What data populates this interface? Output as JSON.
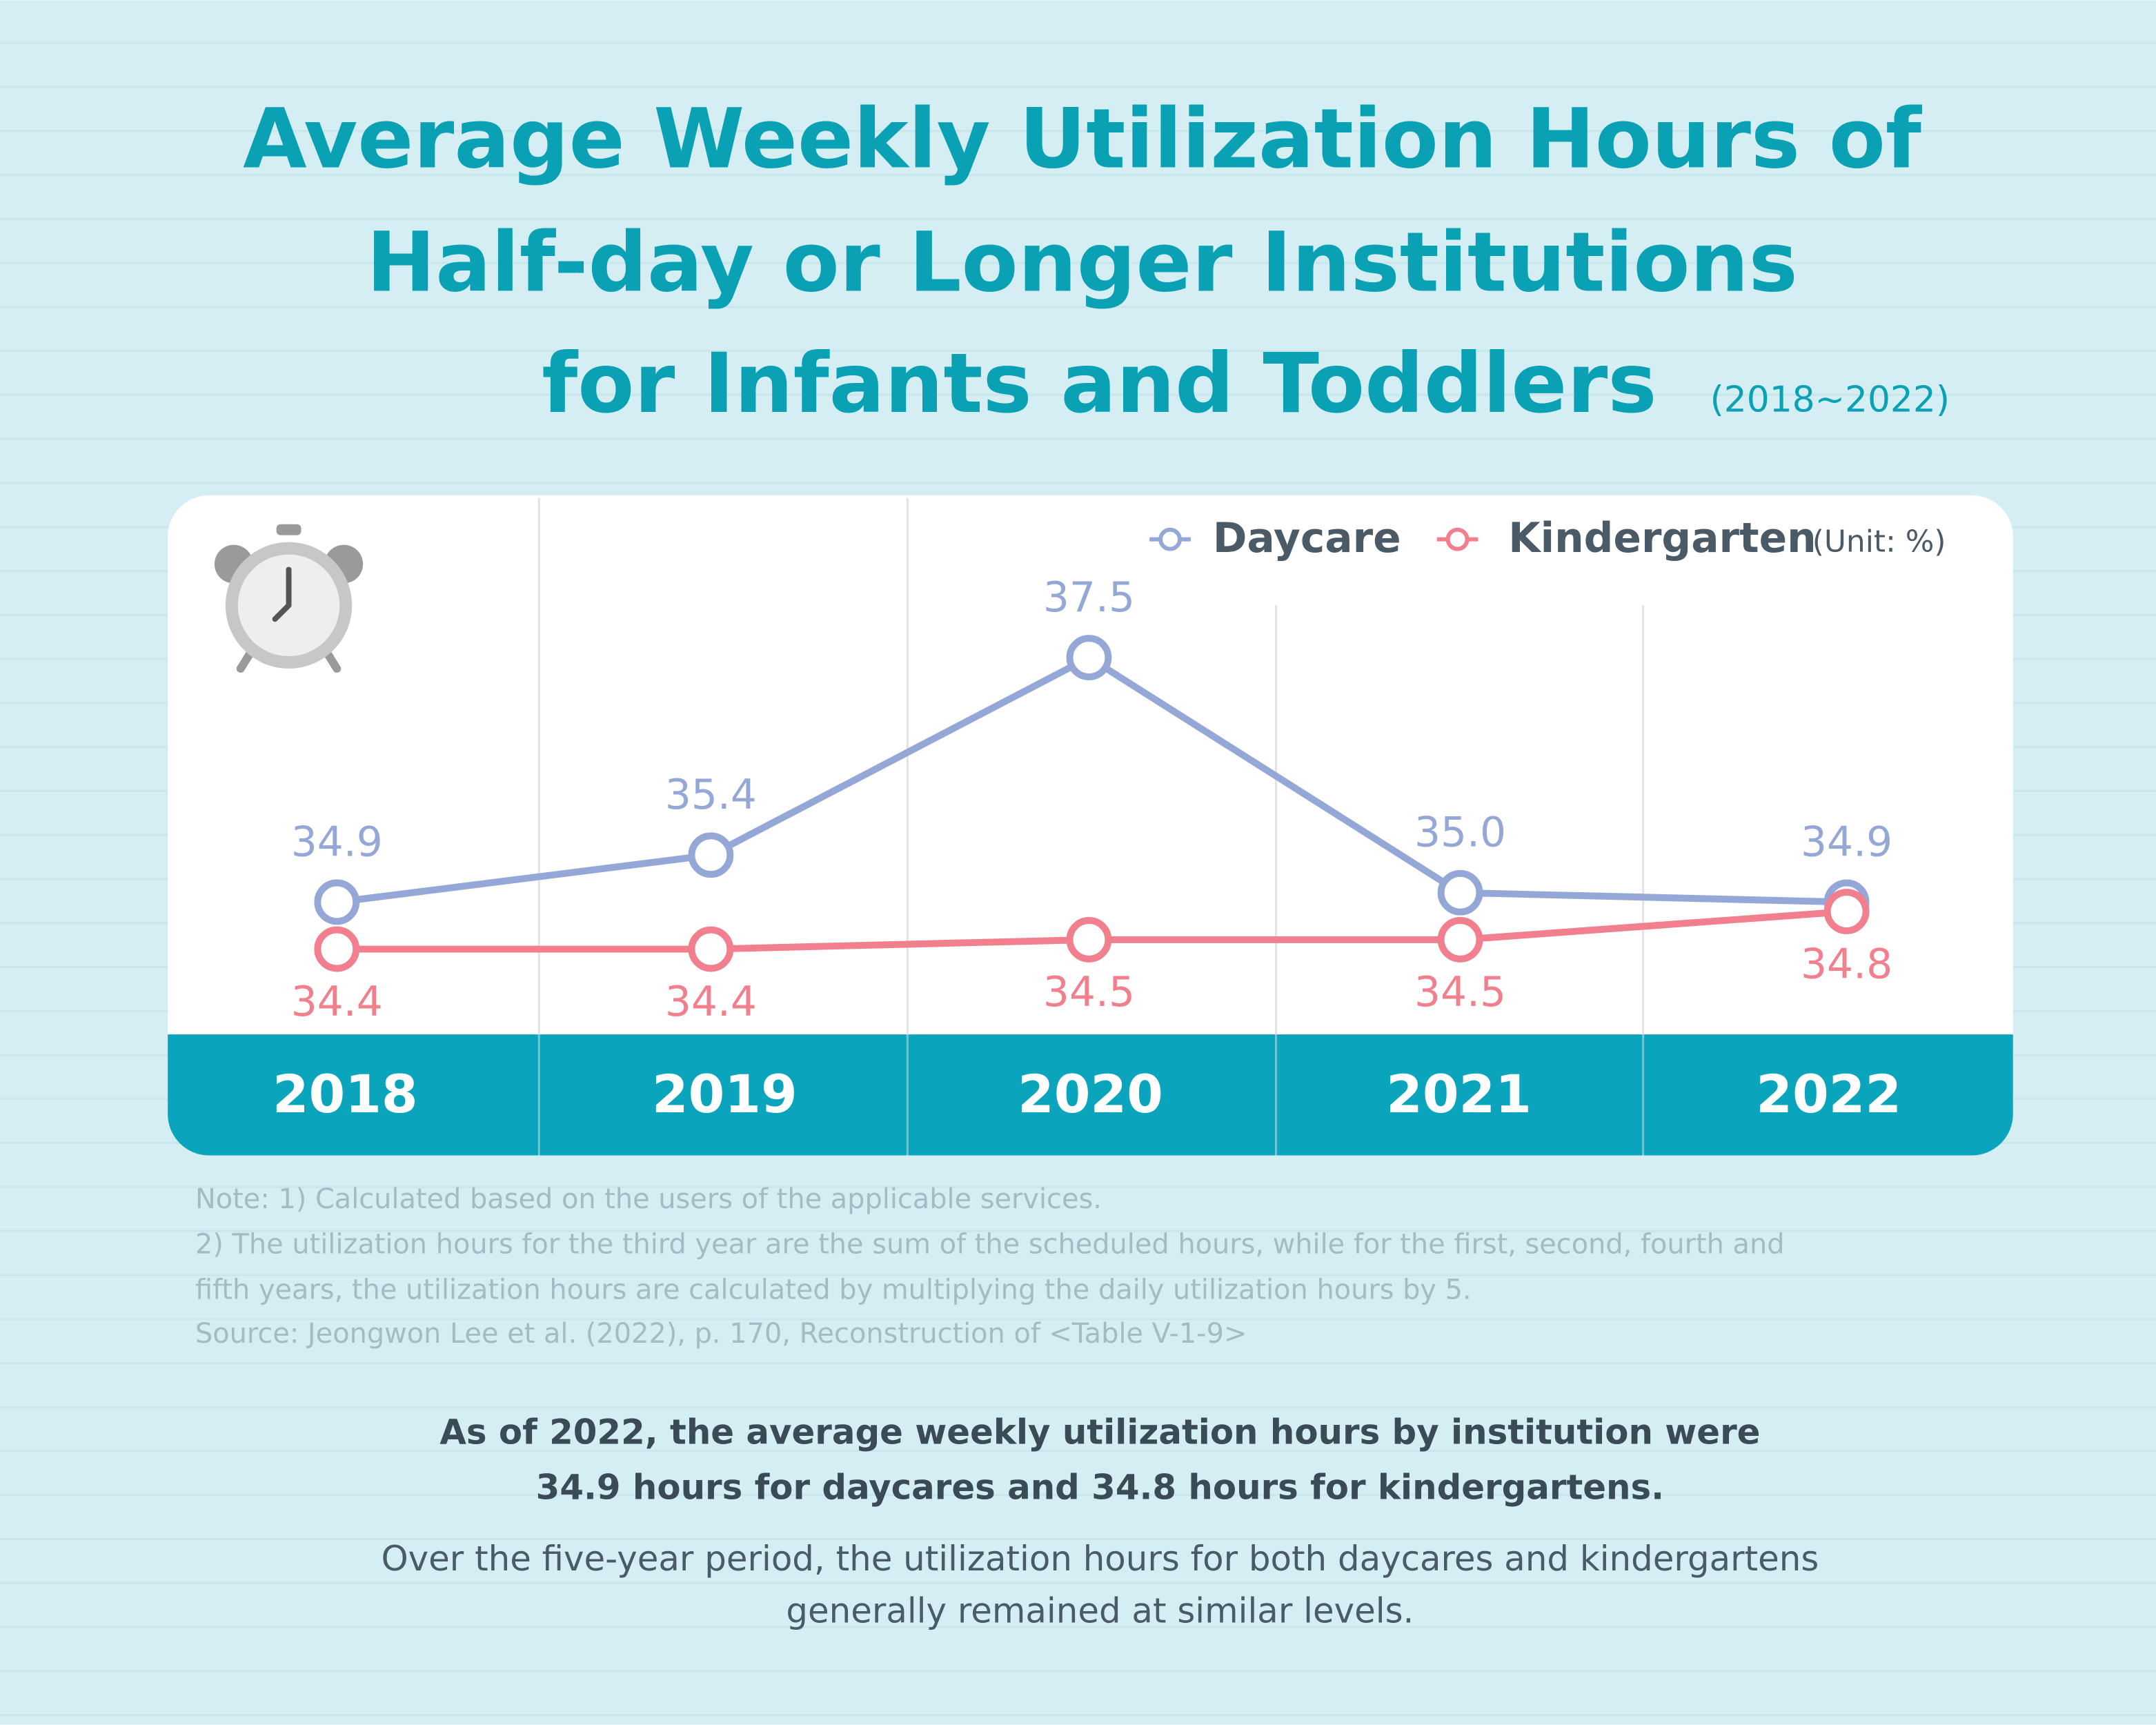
{
  "chart_data": {
    "type": "line",
    "title": [
      "Average Weekly Utilization Hours of",
      "Half-day or Longer Institutions",
      "for Infants and Toddlers"
    ],
    "subtitle": "(2018~2022)",
    "unit": "(Unit: %)",
    "categories": [
      "2018",
      "2019",
      "2020",
      "2021",
      "2022"
    ],
    "series": [
      {
        "name": "Daycare",
        "color": "#94a7d6",
        "values": [
          34.9,
          35.4,
          37.5,
          35.0,
          34.9
        ],
        "value_labels": [
          "34.9",
          "35.4",
          "37.5",
          "35.0",
          "34.9"
        ]
      },
      {
        "name": "Kindergarten",
        "color": "#f27f8d",
        "values": [
          34.4,
          34.4,
          34.5,
          34.5,
          34.8
        ],
        "value_labels": [
          "34.4",
          "34.4",
          "34.5",
          "34.5",
          "34.8"
        ]
      }
    ]
  },
  "notes": [
    "Note: 1) Calculated based on the users of the applicable services.",
    "2) The utilization hours for the third year are the sum of the scheduled hours, while for the first, second, fourth and",
    "fifth years, the utilization hours are calculated by multiplying the daily utilization hours by 5.",
    "Source: Jeongwon Lee et al. (2022), p. 170, Reconstruction of <Table V-1-9>"
  ],
  "summary": {
    "highlight": [
      "As of 2022, the average weekly utilization hours by institution were",
      "34.9 hours for daycares and 34.8 hours for kindergartens."
    ],
    "body": [
      "Over the five-year period, the utilization hours for both daycares and kindergartens",
      "generally remained at similar levels."
    ]
  }
}
